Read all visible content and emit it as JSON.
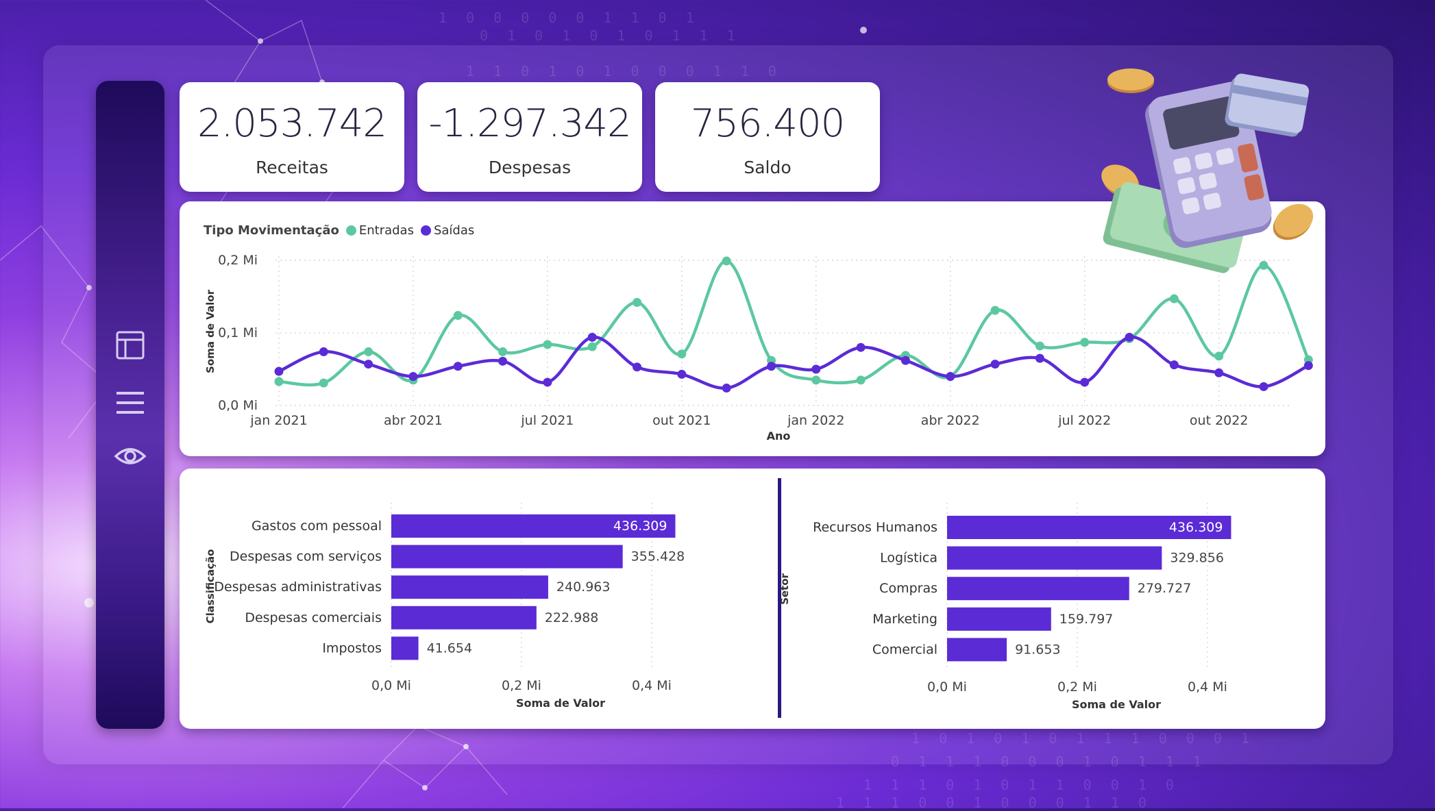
{
  "kpis": [
    {
      "value": "2.053.742",
      "label": "Receitas"
    },
    {
      "value": "-1.297.342",
      "label": "Despesas"
    },
    {
      "value": "756.400",
      "label": "Saldo"
    }
  ],
  "sidebar": {
    "icons": [
      "layout-icon",
      "menu-icon",
      "eye-icon"
    ]
  },
  "colors": {
    "entradas": "#5cc8a0",
    "saidas": "#5b2bd6",
    "bar": "#5b2bd6",
    "sidebar": "#3a1a86"
  },
  "illustration": "calculator-coins-money-icon",
  "background_digits": [
    "1 0 0 0 0 0 1 1 0 1",
    "0 1 0 1 0 1 0 1 1 1",
    "1 1 0 1 0 1 0 0 0 1 1 0",
    "1 0 1 0 1 0 1 1 1 0 0 0 1",
    "0 1 1 1 0 0 0 1 0 1 1 1",
    "1 1 1 0 1 0 1 1 0 0 1 0",
    "1 1 1 0 0 1 0 0 0 1 1 0"
  ],
  "chart_data": [
    {
      "type": "line",
      "legend_title": "Tipo Movimentação",
      "legend_placement": "top-left",
      "xlabel": "Ano",
      "ylabel": "Soma de Valor",
      "ylim": [
        0,
        0.2
      ],
      "y_ticks": [
        "0,2 Mi",
        "0,1 Mi",
        "0,0 Mi"
      ],
      "x_ticks": [
        "jan 2021",
        "abr 2021",
        "jul 2021",
        "out 2021",
        "jan 2022",
        "abr 2022",
        "jul 2022",
        "out 2022"
      ],
      "x": [
        "2021-01",
        "2021-02",
        "2021-03",
        "2021-04",
        "2021-05",
        "2021-06",
        "2021-07",
        "2021-08",
        "2021-09",
        "2021-10",
        "2021-11",
        "2021-12",
        "2022-01",
        "2022-02",
        "2022-03",
        "2022-04",
        "2022-05",
        "2022-06",
        "2022-07",
        "2022-08",
        "2022-09",
        "2022-10",
        "2022-11",
        "2022-12"
      ],
      "series": [
        {
          "name": "Entradas",
          "values": [
            0.033,
            0.031,
            0.074,
            0.035,
            0.124,
            0.074,
            0.084,
            0.081,
            0.142,
            0.071,
            0.199,
            0.062,
            0.035,
            0.035,
            0.069,
            0.04,
            0.131,
            0.082,
            0.087,
            0.092,
            0.147,
            0.068,
            0.193,
            0.063
          ]
        },
        {
          "name": "Saídas",
          "values": [
            0.047,
            0.074,
            0.057,
            0.04,
            0.054,
            0.061,
            0.032,
            0.094,
            0.053,
            0.043,
            0.024,
            0.054,
            0.05,
            0.08,
            0.062,
            0.04,
            0.057,
            0.065,
            0.032,
            0.094,
            0.056,
            0.045,
            0.026,
            0.055
          ]
        }
      ]
    },
    {
      "type": "bar",
      "orientation": "horizontal",
      "ylabel": "Classificação",
      "xlabel": "Soma de Valor",
      "x_ticks": [
        "0,0 Mi",
        "0,2 Mi",
        "0,4 Mi"
      ],
      "xlim": [
        0,
        0.4
      ],
      "categories": [
        "Gastos com pessoal",
        "Despesas com serviços",
        "Despesas administrativas",
        "Despesas comerciais",
        "Impostos"
      ],
      "values": [
        436309,
        355428,
        240963,
        222988,
        41654
      ],
      "labels": [
        "436.309",
        "355.428",
        "240.963",
        "222.988",
        "41.654"
      ]
    },
    {
      "type": "bar",
      "orientation": "horizontal",
      "ylabel": "Setor",
      "xlabel": "Soma de Valor",
      "x_ticks": [
        "0,0 Mi",
        "0,2 Mi",
        "0,4 Mi"
      ],
      "xlim": [
        0,
        0.4
      ],
      "categories": [
        "Recursos Humanos",
        "Logística",
        "Compras",
        "Marketing",
        "Comercial"
      ],
      "values": [
        436309,
        329856,
        279727,
        159797,
        91653
      ],
      "labels": [
        "436.309",
        "329.856",
        "279.727",
        "159.797",
        "91.653"
      ]
    }
  ]
}
